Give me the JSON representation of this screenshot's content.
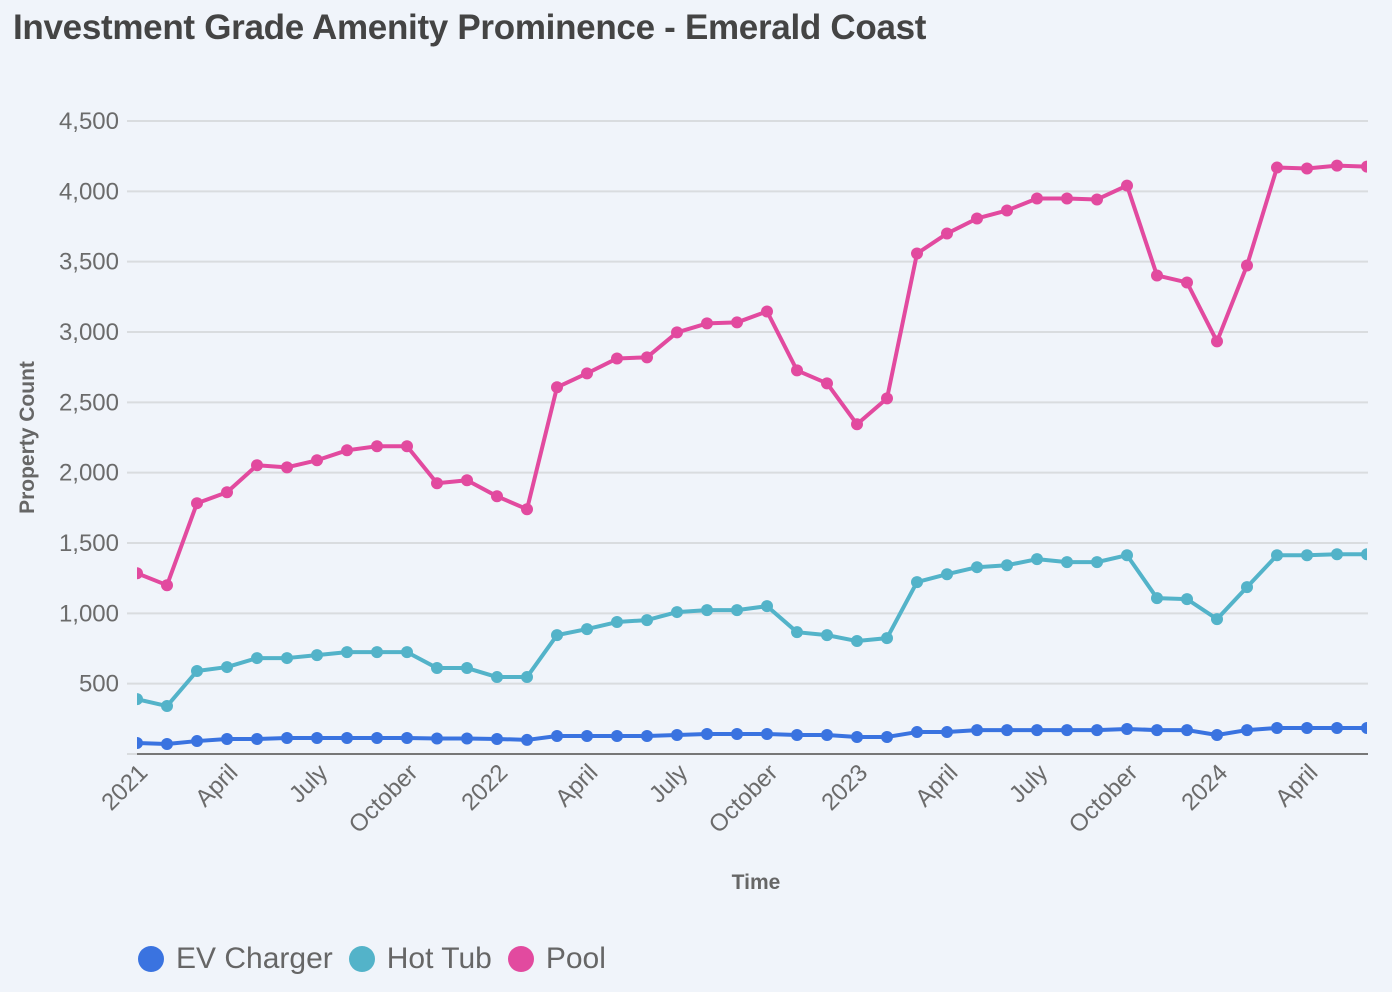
{
  "title": "Investment Grade Amenity Prominence - Emerald Coast",
  "chart_data": {
    "type": "line",
    "title": "Investment Grade Amenity Prominence - Emerald Coast",
    "xlabel": "Time",
    "ylabel": "Property Count",
    "ylim": [
      0,
      4500
    ],
    "yticks": [
      500,
      1000,
      1500,
      2000,
      2500,
      3000,
      3500,
      4000,
      4500
    ],
    "ytick_labels": [
      "500",
      "1,000",
      "1,500",
      "2,000",
      "2,500",
      "3,000",
      "3,500",
      "4,000",
      "4,500"
    ],
    "grid": true,
    "legend_position": "bottom-left",
    "x": [
      "2021-01",
      "2021-02",
      "2021-03",
      "2021-04",
      "2021-05",
      "2021-06",
      "2021-07",
      "2021-08",
      "2021-09",
      "2021-10",
      "2021-11",
      "2021-12",
      "2022-01",
      "2022-02",
      "2022-03",
      "2022-04",
      "2022-05",
      "2022-06",
      "2022-07",
      "2022-08",
      "2022-09",
      "2022-10",
      "2022-11",
      "2022-12",
      "2023-01",
      "2023-02",
      "2023-03",
      "2023-04",
      "2023-05",
      "2023-06",
      "2023-07",
      "2023-08",
      "2023-09",
      "2023-10",
      "2023-11",
      "2023-12",
      "2024-01",
      "2024-02",
      "2024-03",
      "2024-04",
      "2024-05",
      "2024-06"
    ],
    "xticks": [
      {
        "index": 0,
        "label": "2021"
      },
      {
        "index": 3,
        "label": "April"
      },
      {
        "index": 6,
        "label": "July"
      },
      {
        "index": 9,
        "label": "October"
      },
      {
        "index": 12,
        "label": "2022"
      },
      {
        "index": 15,
        "label": "April"
      },
      {
        "index": 18,
        "label": "July"
      },
      {
        "index": 21,
        "label": "October"
      },
      {
        "index": 24,
        "label": "2023"
      },
      {
        "index": 27,
        "label": "April"
      },
      {
        "index": 30,
        "label": "July"
      },
      {
        "index": 33,
        "label": "October"
      },
      {
        "index": 36,
        "label": "2024"
      },
      {
        "index": 39,
        "label": "April"
      }
    ],
    "series": [
      {
        "name": "EV Charger",
        "color": "#3a73e0",
        "values": [
          78,
          71,
          92,
          107,
          107,
          114,
          114,
          114,
          114,
          114,
          110,
          110,
          107,
          100,
          128,
          128,
          128,
          128,
          135,
          142,
          142,
          142,
          135,
          135,
          121,
          121,
          156,
          156,
          170,
          170,
          170,
          170,
          170,
          178,
          170,
          170,
          135,
          170,
          185,
          185,
          185,
          185
        ]
      },
      {
        "name": "Hot Tub",
        "color": "#53b3c9",
        "values": [
          390,
          341,
          590,
          618,
          682,
          682,
          703,
          724,
          724,
          724,
          611,
          611,
          547,
          547,
          845,
          888,
          938,
          952,
          1009,
          1023,
          1023,
          1051,
          866,
          845,
          803,
          824,
          1222,
          1278,
          1328,
          1342,
          1385,
          1364,
          1364,
          1413,
          1108,
          1101,
          959,
          1186,
          1413,
          1413,
          1420,
          1420
        ]
      },
      {
        "name": "Pool",
        "color": "#e24a9f",
        "values": [
          1285,
          1200,
          1783,
          1861,
          2053,
          2038,
          2088,
          2159,
          2188,
          2188,
          1925,
          1946,
          1832,
          1740,
          2607,
          2706,
          2812,
          2820,
          2997,
          3061,
          3068,
          3146,
          2727,
          2635,
          2344,
          2528,
          3558,
          3700,
          3807,
          3864,
          3949,
          3949,
          3942,
          4041,
          3402,
          3352,
          2933,
          3473,
          4169,
          4162,
          4183,
          4176
        ]
      }
    ]
  }
}
